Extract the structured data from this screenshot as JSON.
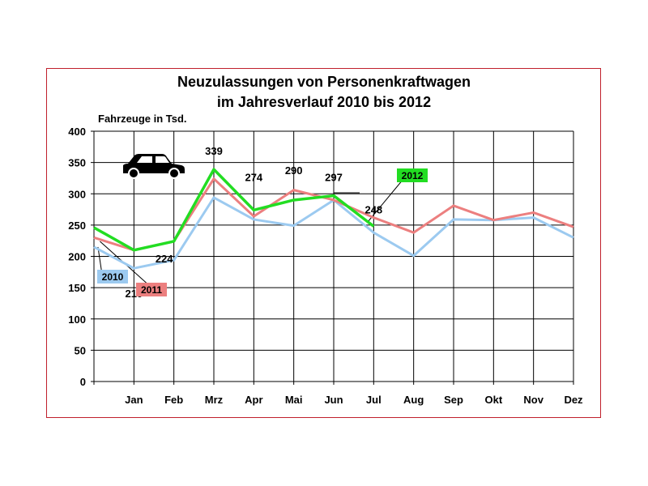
{
  "chart_data": {
    "type": "line",
    "title": "Neuzulassungen von Personenkraftwagen",
    "subtitle": "im Jahresverlauf 2010 bis 2012",
    "ylabel": "Fahrzeuge in Tsd.",
    "ylim": [
      0,
      400
    ],
    "yticks": [
      0,
      50,
      100,
      150,
      200,
      250,
      300,
      350,
      400
    ],
    "x_start_value_index": 0,
    "categories": [
      "",
      "Jan",
      "Feb",
      "Mrz",
      "Apr",
      "Mai",
      "Jun",
      "Jul",
      "Aug",
      "Sep",
      "Okt",
      "Nov",
      "Dez"
    ],
    "grid": true,
    "series": [
      {
        "name": "2010",
        "color": "#9ccaf0",
        "values": [
          215,
          181,
          194,
          294,
          259,
          249,
          290,
          238,
          201,
          259,
          258,
          262,
          230
        ]
      },
      {
        "name": "2011",
        "color": "#ec7f7f",
        "values": [
          230,
          210,
          224,
          324,
          264,
          306,
          290,
          262,
          238,
          281,
          258,
          270,
          247
        ]
      },
      {
        "name": "2012",
        "color": "#22dd22",
        "values": [
          246,
          210,
          224,
          339,
          274,
          290,
          297,
          248,
          null,
          null,
          null,
          null,
          null
        ]
      }
    ],
    "data_labels": [
      {
        "text": "210",
        "index": 1
      },
      {
        "text": "224",
        "index": 2
      },
      {
        "text": "339",
        "index": 3
      },
      {
        "text": "274",
        "index": 4
      },
      {
        "text": "290",
        "index": 5
      },
      {
        "text": "297",
        "index": 6
      },
      {
        "text": "248",
        "index": 7
      }
    ],
    "legend_labels": [
      {
        "series": "2010",
        "bg": "#9ccaf0"
      },
      {
        "series": "2011",
        "bg": "#ec7f7f"
      },
      {
        "series": "2012",
        "bg": "#22dd22"
      }
    ],
    "icon": "car-icon"
  }
}
